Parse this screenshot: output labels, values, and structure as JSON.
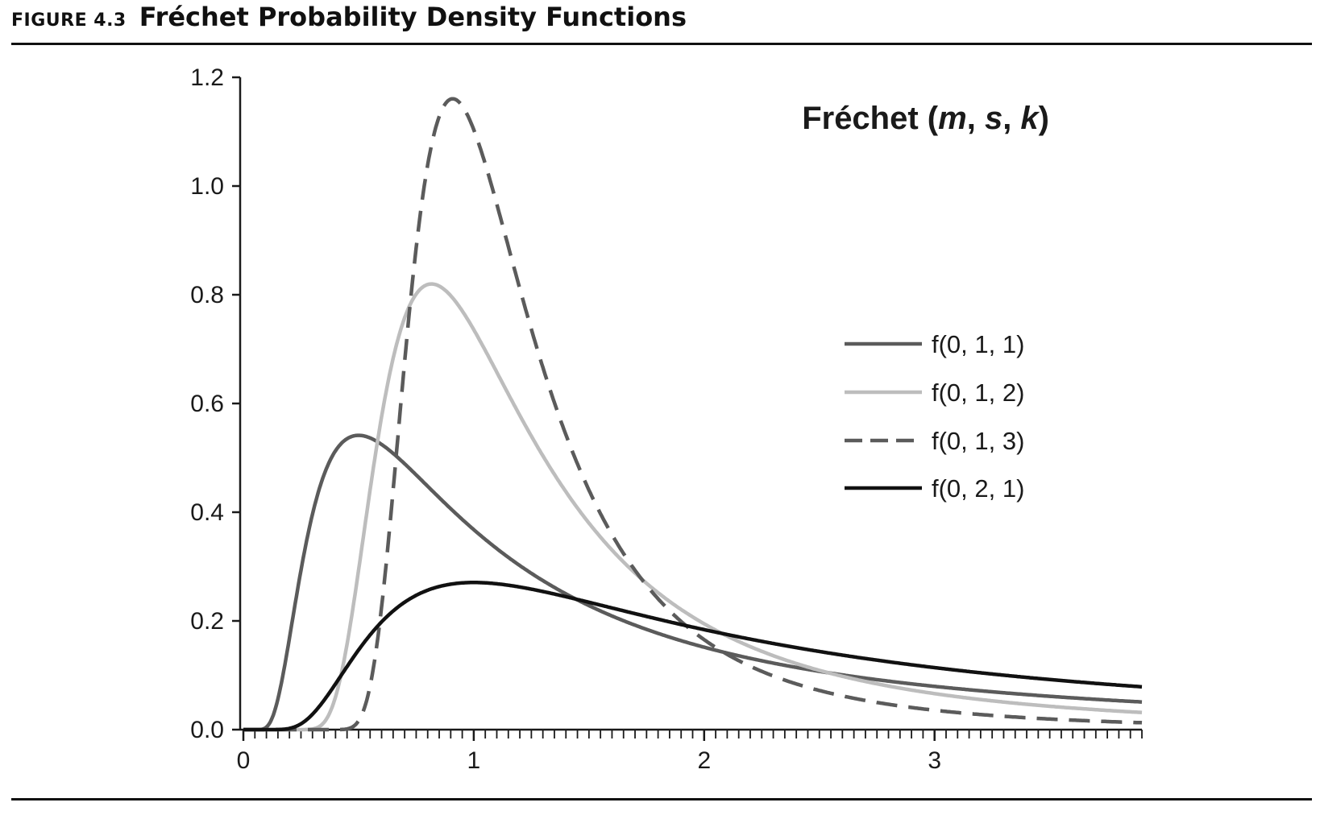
{
  "figure": {
    "label": "FIGURE 4.3",
    "title": "Fréchet Probability Density Functions"
  },
  "chart_data": {
    "type": "line",
    "title": "Fréchet (m, s, k)",
    "title_parts": [
      {
        "text": "Fréchet (",
        "italic": false
      },
      {
        "text": "m",
        "italic": true
      },
      {
        "text": ", ",
        "italic": false
      },
      {
        "text": "s",
        "italic": true
      },
      {
        "text": ", ",
        "italic": false
      },
      {
        "text": "k",
        "italic": true
      },
      {
        "text": ")",
        "italic": false
      }
    ],
    "xlabel": "",
    "ylabel": "",
    "xlim": [
      0,
      3.9
    ],
    "ylim": [
      0,
      1.2
    ],
    "x_ticks": [
      0,
      1,
      2,
      3
    ],
    "x_tick_labels": [
      "0",
      "1",
      "2",
      "3"
    ],
    "x_minor_tick_step": 0.05,
    "y_ticks": [
      0,
      0.2,
      0.4,
      0.6,
      0.8,
      1.0,
      1.2
    ],
    "y_tick_labels": [
      "0.0",
      "0.2",
      "0.4",
      "0.6",
      "0.8",
      "1.0",
      "1.2"
    ],
    "grid": false,
    "legend_position": "right",
    "series": [
      {
        "name": "f(0, 1, 1)",
        "m": 0,
        "s": 1,
        "k": 1,
        "color": "#5b5b5b",
        "dashed": false,
        "peak": {
          "x": 0.5,
          "y": 0.54
        }
      },
      {
        "name": "f(0, 1, 2)",
        "m": 0,
        "s": 1,
        "k": 2,
        "color": "#bdbdbd",
        "dashed": false,
        "peak": {
          "x": 0.82,
          "y": 0.82
        }
      },
      {
        "name": "f(0, 1, 3)",
        "m": 0,
        "s": 1,
        "k": 3,
        "color": "#5b5b5b",
        "dashed": true,
        "peak": {
          "x": 0.91,
          "y": 1.16
        }
      },
      {
        "name": "f(0, 2, 1)",
        "m": 0,
        "s": 2,
        "k": 1,
        "color": "#111111",
        "dashed": false,
        "peak": {
          "x": 1.0,
          "y": 0.27
        }
      }
    ]
  }
}
